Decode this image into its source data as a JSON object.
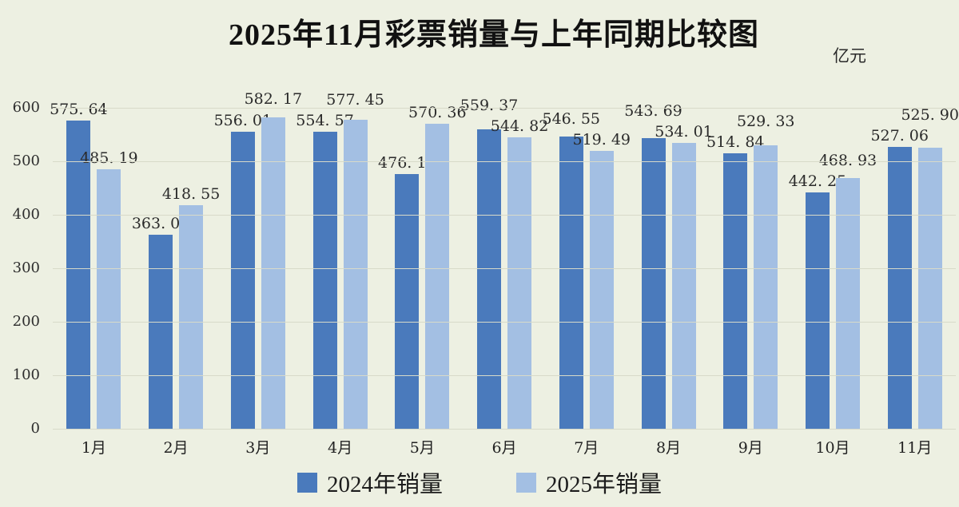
{
  "title": "2025年11月彩票销量与上年同期比较图",
  "unit_label": "亿元",
  "colors": {
    "background": "#edf0e2",
    "grid": "#d8dac9",
    "series_2024": "#4a7abc",
    "series_2025": "#a3bfe3",
    "text": "#2a2a2a"
  },
  "legend": {
    "items": [
      {
        "label": "2024年销量",
        "color": "#4a7abc"
      },
      {
        "label": "2025年销量",
        "color": "#a3bfe3"
      }
    ]
  },
  "chart_data": {
    "type": "bar",
    "title": "2025年11月彩票销量与上年同期比较图",
    "ylabel": "亿元",
    "categories": [
      "1月",
      "2月",
      "3月",
      "4月",
      "5月",
      "6月",
      "7月",
      "8月",
      "9月",
      "10月",
      "11月"
    ],
    "series": [
      {
        "name": "2024年销量",
        "color": "#4a7abc",
        "values": [
          575.64,
          363.01,
          556.01,
          554.57,
          476.18,
          559.37,
          546.55,
          543.69,
          514.84,
          442.25,
          527.06
        ]
      },
      {
        "name": "2025年销量",
        "color": "#a3bfe3",
        "values": [
          485.19,
          418.55,
          582.17,
          577.45,
          570.36,
          544.82,
          519.49,
          534.01,
          529.33,
          468.93,
          525.9
        ]
      }
    ],
    "ylim": [
      0,
      600
    ],
    "yticks": [
      0,
      100,
      200,
      300,
      400,
      500,
      600
    ],
    "grid": true,
    "legend_position": "bottom",
    "value_labels": true
  }
}
